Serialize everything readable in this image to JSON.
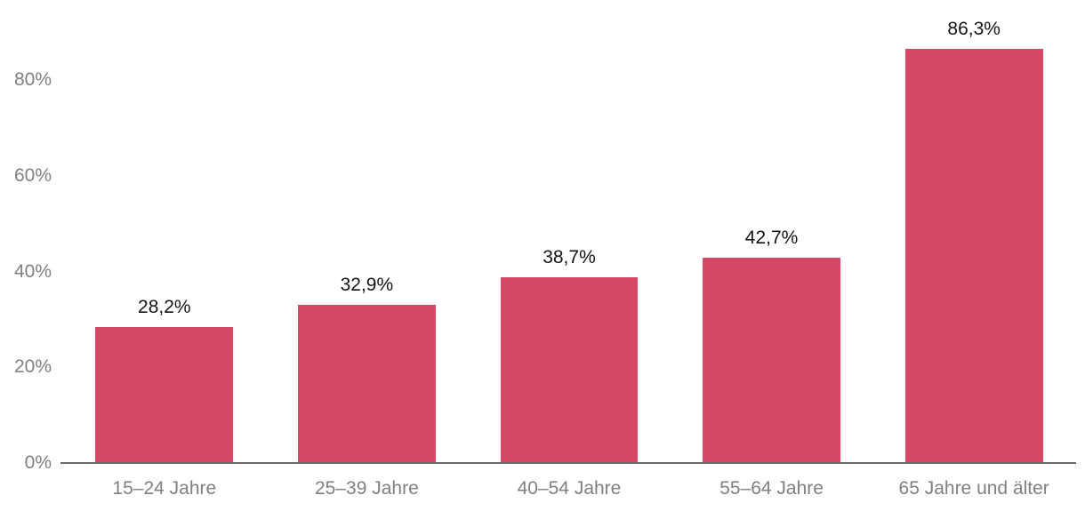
{
  "chart_data": {
    "type": "bar",
    "title": "",
    "xlabel": "",
    "ylabel": "",
    "categories": [
      "15–24 Jahre",
      "25–39 Jahre",
      "40–54 Jahre",
      "55–64 Jahre",
      "65 Jahre und älter"
    ],
    "values": [
      28.2,
      32.9,
      38.7,
      42.7,
      86.3
    ],
    "value_labels": [
      "28,2%",
      "32,9%",
      "38,7%",
      "42,7%",
      "86,3%"
    ],
    "yticks": [
      {
        "value": 0,
        "label": "0%"
      },
      {
        "value": 20,
        "label": "20%"
      },
      {
        "value": 40,
        "label": "40%"
      },
      {
        "value": 60,
        "label": "60%"
      },
      {
        "value": 80,
        "label": "80%"
      }
    ],
    "ylim": [
      0,
      93
    ],
    "grid": false,
    "legend": null,
    "colors": {
      "bar": "#d54866",
      "axis_line": "#6b6b6b",
      "tick_text": "#808080",
      "value_label_text": "#141414",
      "background": "#ffffff"
    }
  }
}
